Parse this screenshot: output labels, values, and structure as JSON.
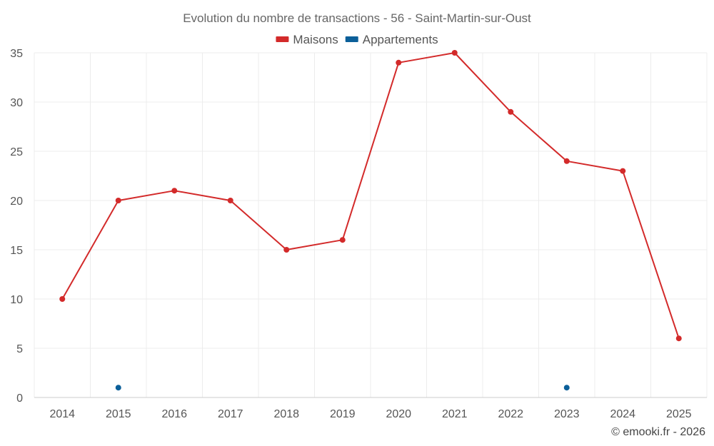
{
  "chart_data": {
    "type": "line",
    "title": "Evolution du nombre de transactions - 56 - Saint-Martin-sur-Oust",
    "categories": [
      "2014",
      "2015",
      "2016",
      "2017",
      "2018",
      "2019",
      "2020",
      "2021",
      "2022",
      "2023",
      "2024",
      "2025"
    ],
    "ylim": [
      0,
      35
    ],
    "yticks": [
      0,
      5,
      10,
      15,
      20,
      25,
      30,
      35
    ],
    "grid": true,
    "legend_position": "top-center",
    "series": [
      {
        "name": "Maisons",
        "color": "#d32a2a",
        "line": true,
        "values": [
          10,
          20,
          21,
          20,
          15,
          16,
          34,
          35,
          29,
          24,
          23,
          6
        ]
      },
      {
        "name": "Appartements",
        "color": "#0b5f99",
        "line": false,
        "values": [
          null,
          1,
          null,
          null,
          null,
          null,
          null,
          null,
          null,
          1,
          null,
          null
        ]
      }
    ]
  },
  "credit": "© emooki.fr - 2026"
}
